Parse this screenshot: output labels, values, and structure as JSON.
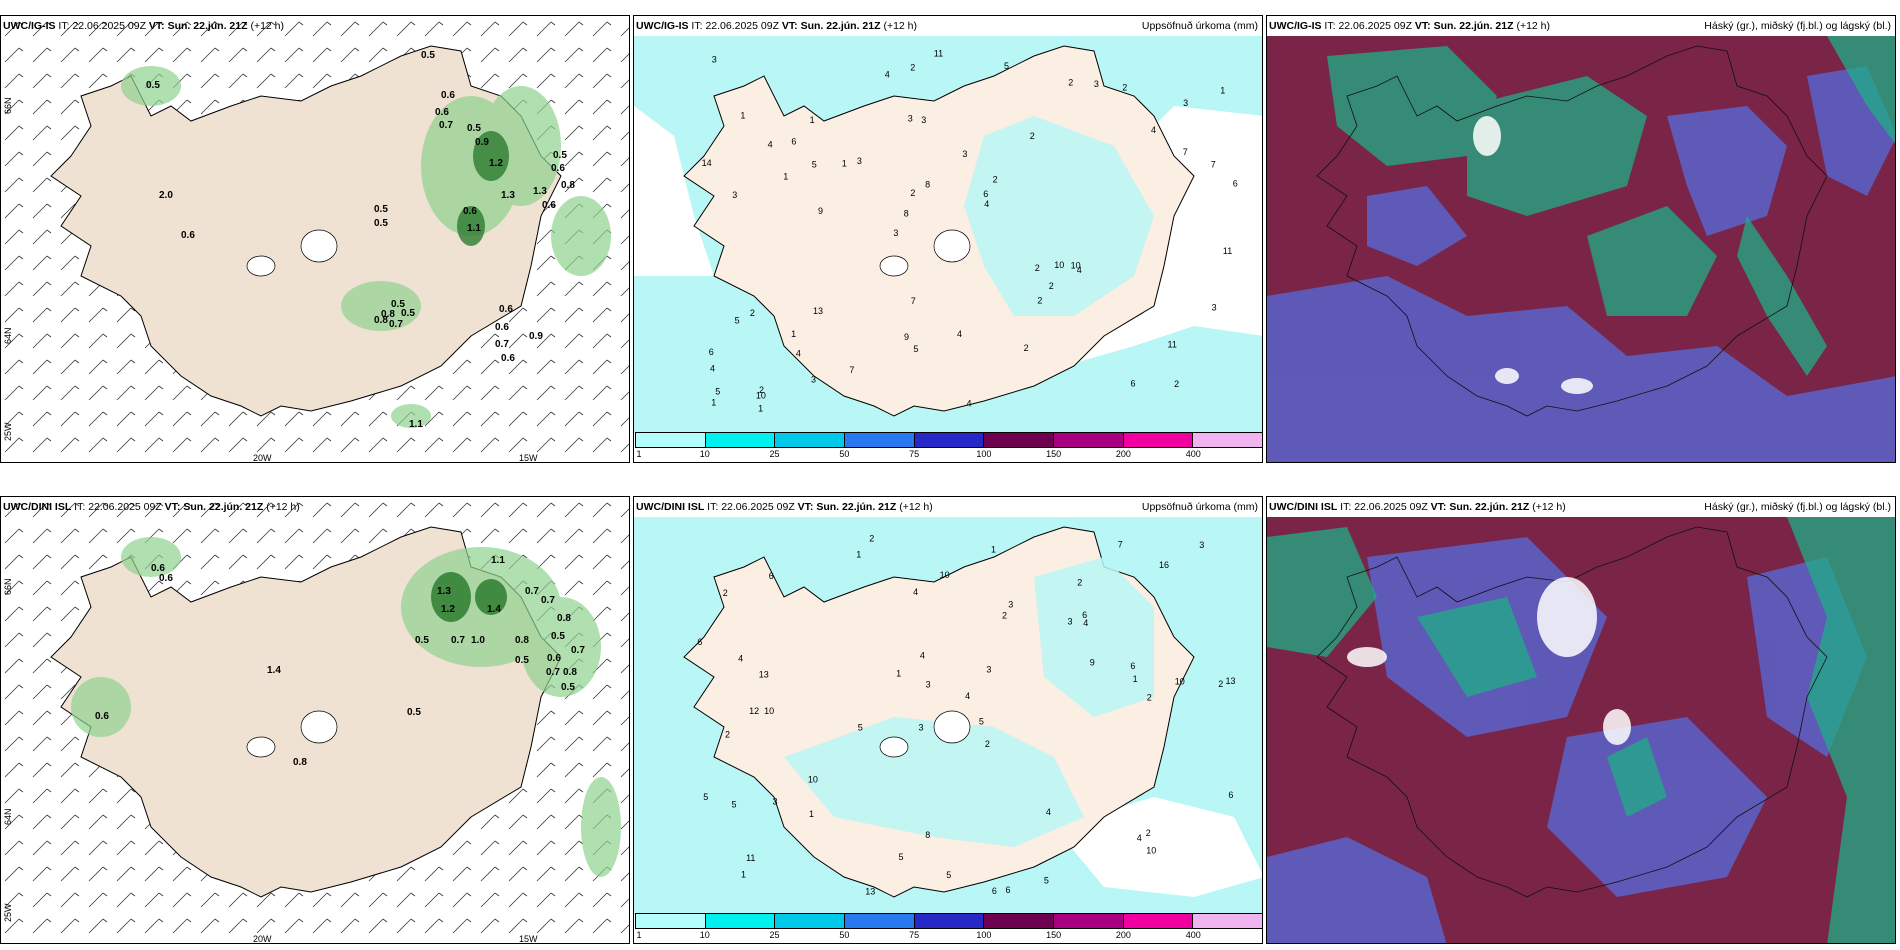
{
  "panels": [
    {
      "model": "UWC/IG-IS",
      "it_label": "IT:",
      "it": "22.06.2025 09Z",
      "vt_label": "VT:",
      "vt": "Sun. 22.jún. 21Z",
      "lead": "(+12 h)",
      "title_right": ""
    },
    {
      "model": "UWC/IG-IS",
      "it_label": "IT:",
      "it": "22.06.2025 09Z",
      "vt_label": "VT:",
      "vt": "Sun. 22.jún. 21Z",
      "lead": "(+12 h)",
      "title_right": "Uppsöfnuð úrkoma (mm)"
    },
    {
      "model": "UWC/IG-IS",
      "it_label": "IT:",
      "it": "22.06.2025 09Z",
      "vt_label": "VT:",
      "vt": "Sun. 22.jún. 21Z",
      "lead": "(+12 h)",
      "title_right": "Háský (gr.), miðský (fj.bl.) og lágský (bl.)"
    },
    {
      "model": "UWC/DINI ISL",
      "it_label": "IT:",
      "it": "22.06.2025 09Z",
      "vt_label": "VT:",
      "vt": "Sun. 22.jún. 21Z",
      "lead": "(+12 h)",
      "title_right": ""
    },
    {
      "model": "UWC/DINI ISL",
      "it_label": "IT:",
      "it": "22.06.2025 09Z",
      "vt_label": "VT:",
      "vt": "Sun. 22.jún. 21Z",
      "lead": "(+12 h)",
      "title_right": "Uppsöfnuð úrkoma (mm)"
    },
    {
      "model": "UWC/DINI ISL",
      "it_label": "IT:",
      "it": "22.06.2025 09Z",
      "vt_label": "VT:",
      "vt": "Sun. 22.jún. 21Z",
      "lead": "(+12 h)",
      "title_right": "Háský (gr.), miðský (fj.bl.) og lágský (bl.)"
    }
  ],
  "axes": {
    "lon_20w": "20W",
    "lon_15w": "15W",
    "lat_66n": "66N",
    "lat_64n": "64N",
    "lat_25w": "25W"
  },
  "colorbar": {
    "labels": [
      "1",
      "10",
      "25",
      "50",
      "75",
      "100",
      "150",
      "200",
      "400"
    ],
    "colors": [
      "#b3fdfd",
      "#00f0f0",
      "#00c8e8",
      "#2878f0",
      "#2828c8",
      "#6e0050",
      "#a80080",
      "#f000a0",
      "#f0b4f0"
    ]
  },
  "wind_values_top": [
    "0.5",
    "0.5",
    "0.6",
    "0.6",
    "0.7",
    "0.5",
    "0.9",
    "1.2",
    "0.5",
    "0.6",
    "0.8",
    "2.0",
    "0.6",
    "1.3",
    "1.3",
    "0.6",
    "0.5",
    "0.5",
    "1.1",
    "0.6",
    "0.5",
    "0.8",
    "0.5",
    "0.8",
    "0.7",
    "0.6",
    "0.6",
    "0.9",
    "0.7",
    "0.6",
    "1.1"
  ],
  "wind_values_bottom": [
    "0.6",
    "0.6",
    "1.1",
    "1.3",
    "1.2",
    "0.7",
    "1.4",
    "0.7",
    "0.8",
    "1.0",
    "0.7",
    "0.5",
    "0.8",
    "0.5",
    "0.7",
    "0.5",
    "0.6",
    "0.7",
    "0.8",
    "0.5",
    "1.4",
    "0.5",
    "0.8",
    "0.6"
  ],
  "precip_values_top": [
    "2",
    "3",
    "3",
    "3",
    "2",
    "2",
    "3",
    "3",
    "2",
    "3",
    "4",
    "4",
    "3",
    "2",
    "4",
    "1",
    "2",
    "6",
    "2",
    "7",
    "8",
    "9",
    "2",
    "1",
    "2",
    "13",
    "6",
    "11",
    "10",
    "4",
    "1",
    "1",
    "2",
    "3",
    "7",
    "6",
    "5",
    "5",
    "4",
    "5",
    "4",
    "1",
    "2",
    "2",
    "1",
    "1",
    "1",
    "4",
    "2",
    "11",
    "9",
    "14",
    "6",
    "3",
    "10",
    "5",
    "4",
    "8",
    "3",
    "7",
    "7",
    "10",
    "5",
    "6",
    "3",
    "4",
    "11"
  ],
  "precip_values_bottom": [
    "2",
    "2",
    "2",
    "3",
    "2",
    "10",
    "2",
    "3",
    "2",
    "2",
    "4",
    "1",
    "1",
    "5",
    "6",
    "6",
    "8",
    "7",
    "9",
    "10",
    "13",
    "12",
    "13",
    "10",
    "5",
    "4",
    "3",
    "1",
    "2",
    "5",
    "4",
    "3",
    "3",
    "1",
    "4",
    "6",
    "6",
    "5",
    "3",
    "10",
    "11",
    "13",
    "5",
    "6",
    "5",
    "4",
    "10",
    "6",
    "6",
    "5",
    "4",
    "2",
    "3",
    "16",
    "1",
    "1",
    "4"
  ]
}
